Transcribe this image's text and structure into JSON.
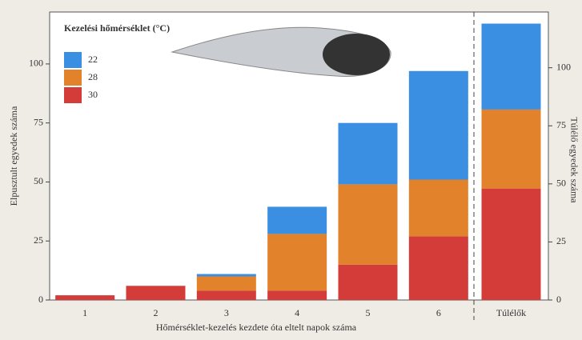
{
  "chart_data": {
    "type": "bar",
    "stacked": true,
    "legend_title": "Kezelési hőmérséklet (°C)",
    "ylabel": "Elpusztult egyedek száma",
    "y2label": "Túlélő egyedek száma",
    "xlabel": "Hőmérséklet-kezelés kezdete óta eltelt napok száma",
    "categories": [
      "1",
      "2",
      "3",
      "4",
      "5",
      "6",
      "Túlélők"
    ],
    "ylim": [
      0,
      122
    ],
    "yticks": [
      0,
      25,
      50,
      75,
      100
    ],
    "y2lim": [
      0,
      124
    ],
    "y2ticks": [
      0,
      25,
      50,
      75,
      100
    ],
    "series": [
      {
        "name": "22",
        "color": "#3b8fe3",
        "values": [
          0,
          0,
          1,
          11.5,
          26,
          46,
          null
        ]
      },
      {
        "name": "28",
        "color": "#e2822b",
        "values": [
          0,
          0,
          6,
          24,
          34,
          24,
          null
        ]
      },
      {
        "name": "30",
        "color": "#d43c3a",
        "values": [
          2,
          6,
          4,
          4,
          15,
          27,
          null
        ]
      },
      {
        "color": "#3b8fe3",
        "axis": "y2",
        "values": [
          null,
          null,
          null,
          null,
          null,
          null,
          37
        ]
      },
      {
        "color": "#e2822b",
        "axis": "y2",
        "values": [
          null,
          null,
          null,
          null,
          null,
          null,
          34
        ]
      },
      {
        "color": "#d43c3a",
        "axis": "y2",
        "values": [
          null,
          null,
          null,
          null,
          null,
          null,
          48
        ]
      }
    ]
  }
}
